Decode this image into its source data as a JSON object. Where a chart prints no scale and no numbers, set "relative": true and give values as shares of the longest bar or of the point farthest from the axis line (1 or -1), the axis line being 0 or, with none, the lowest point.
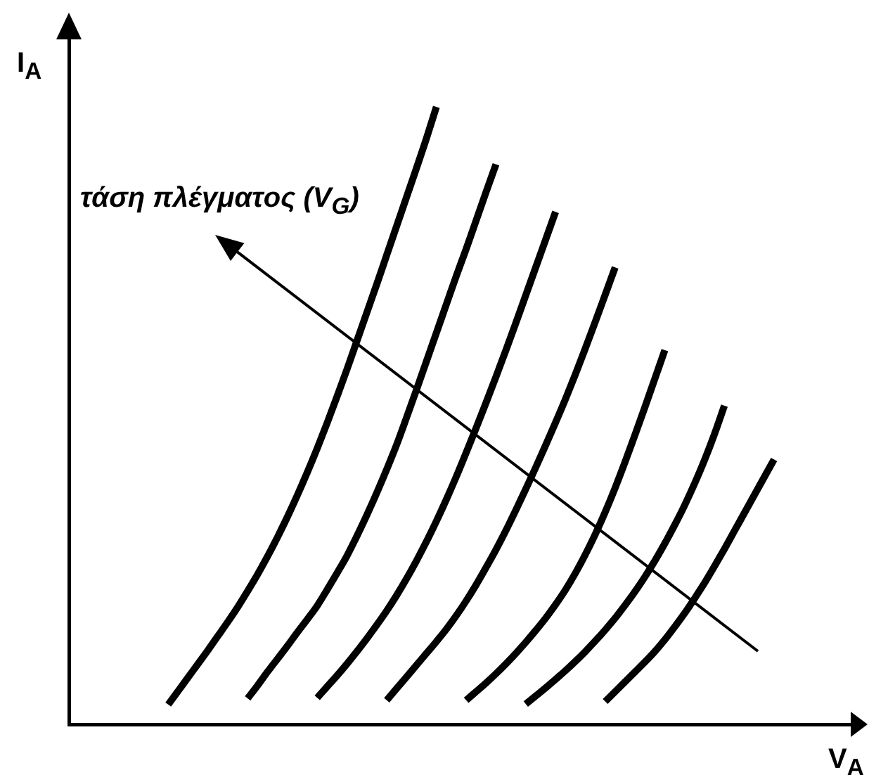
{
  "chart_data": {
    "type": "line",
    "relative": true,
    "xlabel": "V$_{A}$",
    "ylabel": "I$_{A}$",
    "annotations": [
      "τάση πλέγματος (V$_{G}$)"
    ],
    "legend": false,
    "grid": false,
    "marker": "none",
    "line_style": "solid",
    "tick_labels": false,
    "categories": [
      null,
      null,
      null,
      null,
      null,
      null,
      null,
      null,
      null,
      null,
      null,
      null,
      null,
      null,
      null,
      null,
      null,
      null,
      null,
      null,
      null,
      null,
      null,
      null,
      null,
      null,
      null,
      null,
      null,
      null,
      null,
      null,
      null,
      null,
      null,
      null,
      null,
      null,
      null,
      null,
      null,
      null,
      null,
      null,
      null,
      null,
      null,
      null,
      null,
      null,
      null,
      null,
      null,
      null,
      null,
      null,
      null,
      null,
      null,
      null,
      null,
      null,
      null,
      null,
      null,
      null,
      null,
      null,
      null,
      null,
      null,
      null,
      null,
      null,
      null,
      null,
      null,
      null,
      null,
      null
    ],
    "series": [
      {
        "color": "#000000",
        "values": [
          null,
          null,
          null,
          null,
          null,
          null,
          null,
          null,
          null,
          null,
          0.032,
          0.054,
          0.076,
          0.098,
          0.12,
          0.143,
          0.166,
          0.19,
          0.216,
          0.243,
          0.272,
          0.303,
          0.336,
          0.371,
          0.408,
          0.447,
          0.488,
          0.531,
          0.575,
          0.621,
          0.667,
          0.713,
          0.76,
          0.807,
          0.854,
          0.901,
          0.949,
          1,
          null,
          null,
          null,
          null,
          null,
          null,
          null,
          null,
          null,
          null,
          null,
          null,
          null,
          null,
          null,
          null,
          null,
          null,
          null,
          null,
          null,
          null,
          null,
          null,
          null,
          null,
          null,
          null,
          null,
          null,
          null,
          null,
          null,
          null,
          null,
          null,
          null,
          null,
          null,
          null,
          null,
          null
        ]
      },
      {
        "color": "#000000",
        "values": [
          null,
          null,
          null,
          null,
          null,
          null,
          null,
          null,
          null,
          null,
          null,
          null,
          null,
          null,
          null,
          null,
          null,
          null,
          0.042,
          0.063,
          0.085,
          0.106,
          0.127,
          0.149,
          0.17,
          0.192,
          0.218,
          0.245,
          0.273,
          0.305,
          0.339,
          0.375,
          0.413,
          0.453,
          0.497,
          0.542,
          0.588,
          0.634,
          0.68,
          0.726,
          0.77,
          0.816,
          0.862,
          0.907,
          null,
          null,
          null,
          null,
          null,
          null,
          null,
          null,
          null,
          null,
          null,
          null,
          null,
          null,
          null,
          null,
          null,
          null,
          null,
          null,
          null,
          null,
          null,
          null,
          null,
          null,
          null,
          null,
          null,
          null,
          null,
          null,
          null,
          null,
          null,
          null
        ]
      },
      {
        "color": "#000000",
        "values": [
          null,
          null,
          null,
          null,
          null,
          null,
          null,
          null,
          null,
          null,
          null,
          null,
          null,
          null,
          null,
          null,
          null,
          null,
          null,
          null,
          null,
          null,
          null,
          null,
          null,
          0.043,
          0.061,
          0.079,
          0.098,
          0.118,
          0.139,
          0.161,
          0.184,
          0.209,
          0.236,
          0.265,
          0.296,
          0.329,
          0.364,
          0.401,
          0.44,
          0.48,
          0.521,
          0.563,
          0.606,
          0.65,
          0.695,
          0.74,
          0.785,
          0.83,
          null,
          null,
          null,
          null,
          null,
          null,
          null,
          null,
          null,
          null,
          null,
          null,
          null,
          null,
          null,
          null,
          null,
          null,
          null,
          null,
          null,
          null,
          null,
          null,
          null,
          null,
          null,
          null,
          null,
          null
        ]
      },
      {
        "color": "#000000",
        "values": [
          null,
          null,
          null,
          null,
          null,
          null,
          null,
          null,
          null,
          null,
          null,
          null,
          null,
          null,
          null,
          null,
          null,
          null,
          null,
          null,
          null,
          null,
          null,
          null,
          null,
          null,
          null,
          null,
          null,
          null,
          null,
          null,
          0.039,
          0.058,
          0.077,
          0.096,
          0.115,
          0.134,
          0.154,
          0.176,
          0.2,
          0.226,
          0.254,
          0.283,
          0.314,
          0.347,
          0.381,
          0.416,
          0.452,
          0.489,
          0.527,
          0.567,
          0.609,
          0.652,
          0.696,
          0.74,
          null,
          null,
          null,
          null,
          null,
          null,
          null,
          null,
          null,
          null,
          null,
          null,
          null,
          null,
          null,
          null,
          null,
          null,
          null,
          null,
          null,
          null,
          null,
          null
        ]
      },
      {
        "color": "#000000",
        "values": [
          null,
          null,
          null,
          null,
          null,
          null,
          null,
          null,
          null,
          null,
          null,
          null,
          null,
          null,
          null,
          null,
          null,
          null,
          null,
          null,
          null,
          null,
          null,
          null,
          null,
          null,
          null,
          null,
          null,
          null,
          null,
          null,
          null,
          null,
          null,
          null,
          null,
          null,
          null,
          null,
          0.039,
          0.053,
          0.067,
          0.082,
          0.098,
          0.115,
          0.133,
          0.152,
          0.172,
          0.194,
          0.218,
          0.245,
          0.275,
          0.308,
          0.344,
          0.383,
          0.425,
          0.469,
          0.514,
          0.56,
          0.606,
          null,
          null,
          null,
          null,
          null,
          null,
          null,
          null,
          null,
          null,
          null,
          null,
          null,
          null,
          null,
          null,
          null,
          null,
          null
        ]
      },
      {
        "color": "#000000",
        "values": [
          null,
          null,
          null,
          null,
          null,
          null,
          null,
          null,
          null,
          null,
          null,
          null,
          null,
          null,
          null,
          null,
          null,
          null,
          null,
          null,
          null,
          null,
          null,
          null,
          null,
          null,
          null,
          null,
          null,
          null,
          null,
          null,
          null,
          null,
          null,
          null,
          null,
          null,
          null,
          null,
          null,
          null,
          null,
          null,
          null,
          null,
          0.033,
          0.046,
          0.059,
          0.073,
          0.087,
          0.102,
          0.118,
          0.135,
          0.153,
          0.172,
          0.193,
          0.215,
          0.239,
          0.265,
          0.293,
          0.323,
          0.355,
          0.39,
          0.428,
          0.47,
          0.516,
          null,
          null,
          null,
          null,
          null,
          null,
          null,
          null,
          null,
          null,
          null,
          null,
          null
        ]
      },
      {
        "color": "#000000",
        "values": [
          null,
          null,
          null,
          null,
          null,
          null,
          null,
          null,
          null,
          null,
          null,
          null,
          null,
          null,
          null,
          null,
          null,
          null,
          null,
          null,
          null,
          null,
          null,
          null,
          null,
          null,
          null,
          null,
          null,
          null,
          null,
          null,
          null,
          null,
          null,
          null,
          null,
          null,
          null,
          null,
          null,
          null,
          null,
          null,
          null,
          null,
          null,
          null,
          null,
          null,
          null,
          null,
          null,
          null,
          0.037,
          0.053,
          0.069,
          0.085,
          0.101,
          0.118,
          0.137,
          0.158,
          0.18,
          0.204,
          0.229,
          0.256,
          0.284,
          0.313,
          0.342,
          0.371,
          0.4,
          0.429,
          null,
          null,
          null,
          null,
          null,
          null,
          null,
          null
        ]
      }
    ]
  }
}
